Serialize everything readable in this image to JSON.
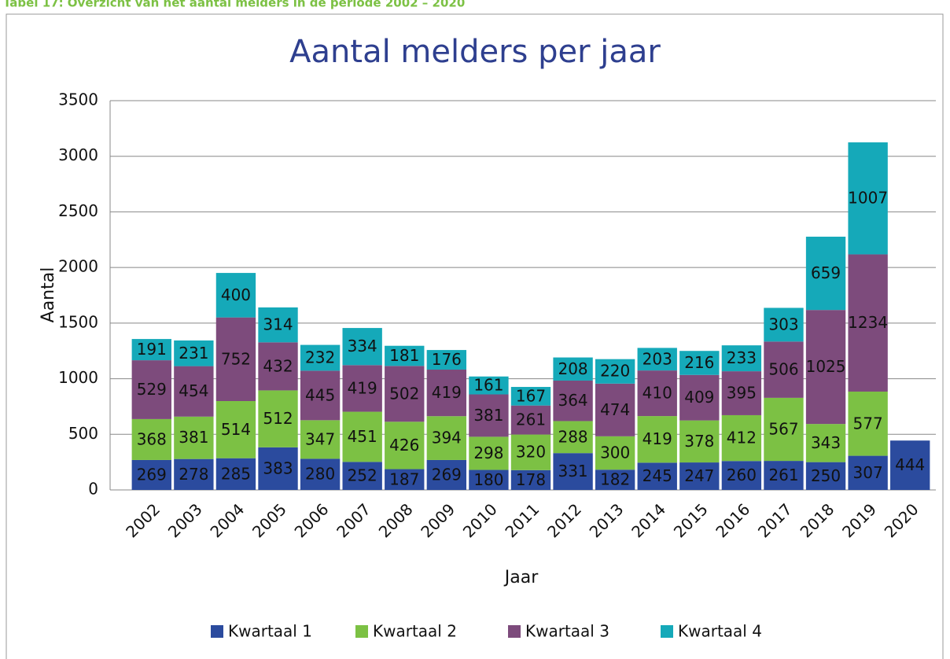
{
  "caption": "Tabel 17: Overzicht van het aantal melders in de periode 2002 – 2020",
  "chart_data": {
    "type": "stacked_bar",
    "title": "Aantal melders per jaar",
    "x_label": "Jaar",
    "y_label": "Aantal",
    "categories": [
      "2002",
      "2003",
      "2004",
      "2005",
      "2006",
      "2007",
      "2008",
      "2009",
      "2010",
      "2011",
      "2012",
      "2013",
      "2014",
      "2015",
      "2016",
      "2017",
      "2018",
      "2019",
      "2020"
    ],
    "series": [
      {
        "name": "Kwartaal 1",
        "color": "#2b4b9e",
        "values": [
          269,
          278,
          285,
          383,
          280,
          252,
          187,
          269,
          180,
          178,
          331,
          182,
          245,
          247,
          260,
          261,
          250,
          307,
          444
        ]
      },
      {
        "name": "Kwartaal 2",
        "color": "#7cc144",
        "values": [
          368,
          381,
          514,
          512,
          347,
          451,
          426,
          394,
          298,
          320,
          288,
          300,
          419,
          378,
          412,
          567,
          343,
          577,
          null
        ]
      },
      {
        "name": "Kwartaal 3",
        "color": "#7d4b7c",
        "values": [
          529,
          454,
          752,
          432,
          445,
          419,
          502,
          419,
          381,
          261,
          364,
          474,
          410,
          409,
          395,
          506,
          1025,
          1234,
          null
        ]
      },
      {
        "name": "Kwartaal 4",
        "color": "#15a9b9",
        "values": [
          191,
          231,
          400,
          314,
          232,
          334,
          181,
          176,
          161,
          167,
          208,
          220,
          203,
          216,
          233,
          303,
          659,
          1007,
          null
        ]
      }
    ],
    "ylim": [
      0,
      3500
    ],
    "yticks": [
      0,
      500,
      1000,
      1500,
      2000,
      2500,
      3000,
      3500
    ],
    "grid": true,
    "legend": "bottom"
  }
}
